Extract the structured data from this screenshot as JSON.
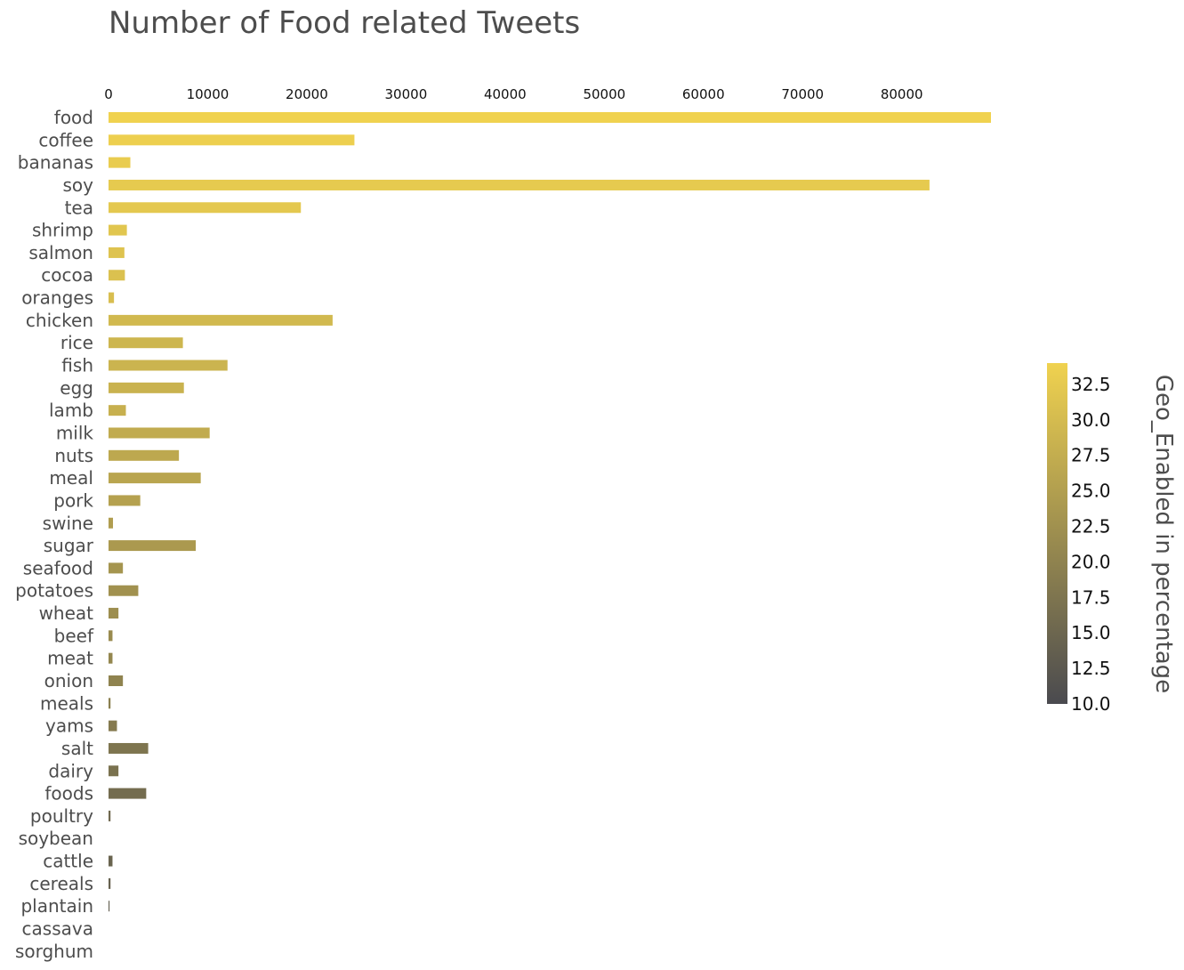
{
  "chart_data": {
    "type": "bar",
    "orientation": "horizontal",
    "title": "Number of Food related Tweets",
    "xlabel": "",
    "ylabel": "",
    "x_axis_position": "top",
    "xlim": [
      0,
      89000
    ],
    "x_ticks": [
      "0",
      "10000",
      "20000",
      "30000",
      "40000",
      "50000",
      "60000",
      "70000",
      "80000"
    ],
    "categories": [
      "food",
      "coffee",
      "bananas",
      "soy",
      "tea",
      "shrimp",
      "salmon",
      "cocoa",
      "oranges",
      "chicken",
      "rice",
      "fish",
      "egg",
      "lamb",
      "milk",
      "nuts",
      "meal",
      "pork",
      "swine",
      "sugar",
      "seafood",
      "potatoes",
      "wheat",
      "beef",
      "meat",
      "onion",
      "meals",
      "yams",
      "salt",
      "dairy",
      "foods",
      "poultry",
      "soybean",
      "cattle",
      "cereals",
      "plantain",
      "cassava",
      "sorghum"
    ],
    "values": [
      89000,
      24800,
      2200,
      82800,
      19400,
      1850,
      1600,
      1650,
      550,
      22600,
      7500,
      12000,
      7600,
      1750,
      10200,
      7100,
      9300,
      3200,
      450,
      8800,
      1450,
      3000,
      1000,
      400,
      400,
      1450,
      200,
      850,
      4000,
      1000,
      3800,
      200,
      0,
      400,
      200,
      100,
      0,
      0
    ],
    "color_values": [
      34,
      33.5,
      33,
      32.6,
      32.2,
      31.8,
      31.4,
      31,
      30.5,
      29.5,
      29,
      28.7,
      28.4,
      28,
      27.2,
      26.6,
      26,
      25.4,
      24.7,
      24,
      23.2,
      22.6,
      22,
      21.4,
      20.7,
      20,
      19.3,
      18.5,
      17.5,
      17,
      16,
      15.5,
      15,
      14.5,
      14,
      13.5,
      12,
      11
    ],
    "colorbar": {
      "title": "Geo_Enabled in percentage",
      "range": [
        10,
        34
      ],
      "ticks": [
        "32.5",
        "30.0",
        "27.5",
        "25.0",
        "22.5",
        "20.0",
        "17.5",
        "15.0",
        "12.5",
        "10.0"
      ],
      "color_low": "#4a4a4f",
      "color_high": "#f0d24f"
    },
    "grid": false,
    "legend": "colorbar-right"
  }
}
